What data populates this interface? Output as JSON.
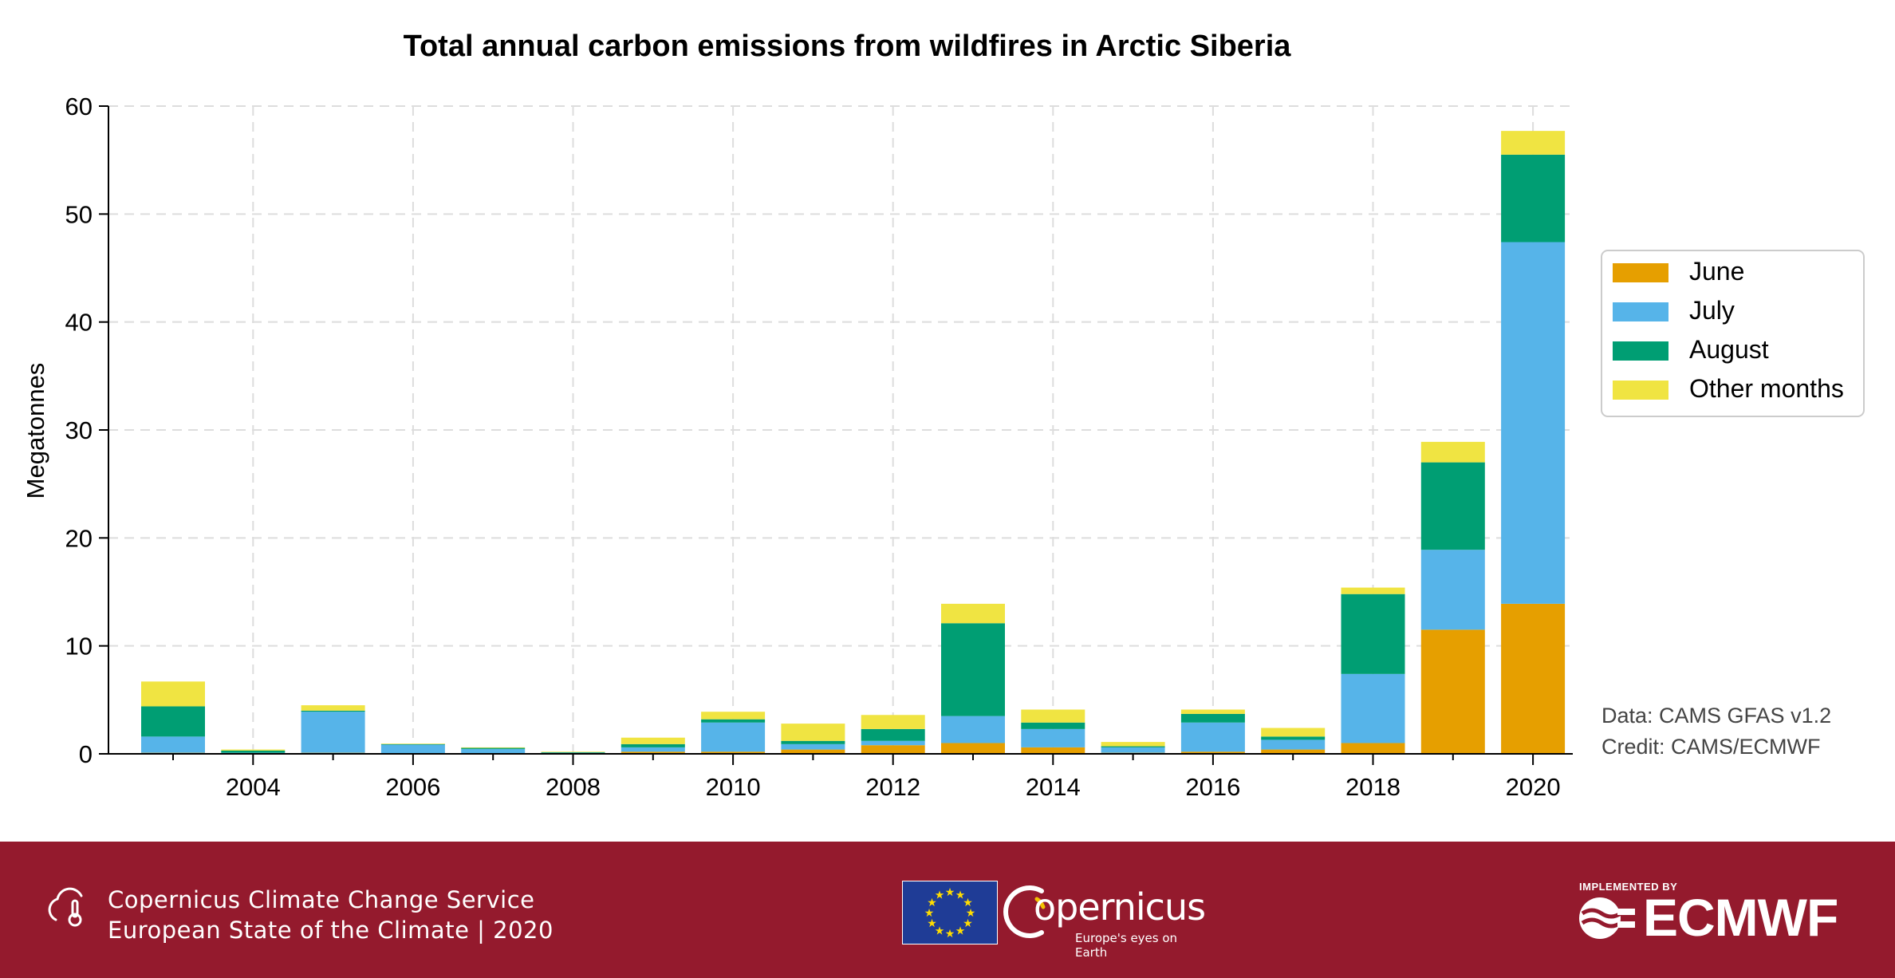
{
  "chart_data": {
    "type": "bar",
    "stacked": true,
    "title": "Total annual carbon emissions from wildfires in Arctic Siberia",
    "xlabel": "",
    "ylabel": "Megatonnes",
    "categories": [
      "2003",
      "2004",
      "2005",
      "2006",
      "2007",
      "2008",
      "2009",
      "2010",
      "2011",
      "2012",
      "2013",
      "2014",
      "2015",
      "2016",
      "2017",
      "2018",
      "2019",
      "2020"
    ],
    "x_tick_labels": [
      "2004",
      "2006",
      "2008",
      "2010",
      "2012",
      "2014",
      "2016",
      "2018",
      "2020"
    ],
    "y_ticks": [
      0,
      10,
      20,
      30,
      40,
      50,
      60
    ],
    "ylim": [
      0,
      60
    ],
    "grid": true,
    "legend_position": "right",
    "series": [
      {
        "name": "June",
        "color": "#e69f00",
        "values": [
          0.1,
          0.05,
          0.1,
          0.05,
          0.05,
          0.05,
          0.2,
          0.2,
          0.4,
          0.8,
          1.0,
          0.6,
          0.1,
          0.2,
          0.4,
          1.0,
          11.5,
          13.9
        ]
      },
      {
        "name": "July",
        "color": "#56b4e9",
        "values": [
          1.5,
          0.05,
          3.8,
          0.8,
          0.4,
          0.05,
          0.4,
          2.7,
          0.5,
          0.4,
          2.5,
          1.7,
          0.5,
          2.7,
          0.9,
          6.4,
          7.4,
          33.5
        ]
      },
      {
        "name": "August",
        "color": "#009e73",
        "values": [
          2.8,
          0.2,
          0.1,
          0.05,
          0.1,
          0.05,
          0.3,
          0.3,
          0.3,
          1.1,
          8.6,
          0.6,
          0.1,
          0.8,
          0.3,
          7.4,
          8.1,
          8.1
        ]
      },
      {
        "name": "Other months",
        "color": "#f0e442",
        "values": [
          2.3,
          0.1,
          0.5,
          0.05,
          0.05,
          0.05,
          0.6,
          0.7,
          1.6,
          1.3,
          1.8,
          1.2,
          0.4,
          0.4,
          0.8,
          0.6,
          1.9,
          2.2
        ]
      }
    ],
    "annotations": [
      "Data: CAMS GFAS v1.2",
      "Credit: CAMS/ECMWF"
    ]
  },
  "footer": {
    "service_name": "Copernicus Climate Change Service",
    "report_name": "European State of the Climate | 2020",
    "copernicus_name": "opernicus",
    "copernicus_tagline": "Europe's eyes on Earth",
    "implemented_by": "IMPLEMENTED BY",
    "ecmwf_name": "ECMWF",
    "background_color": "#941a2d"
  }
}
